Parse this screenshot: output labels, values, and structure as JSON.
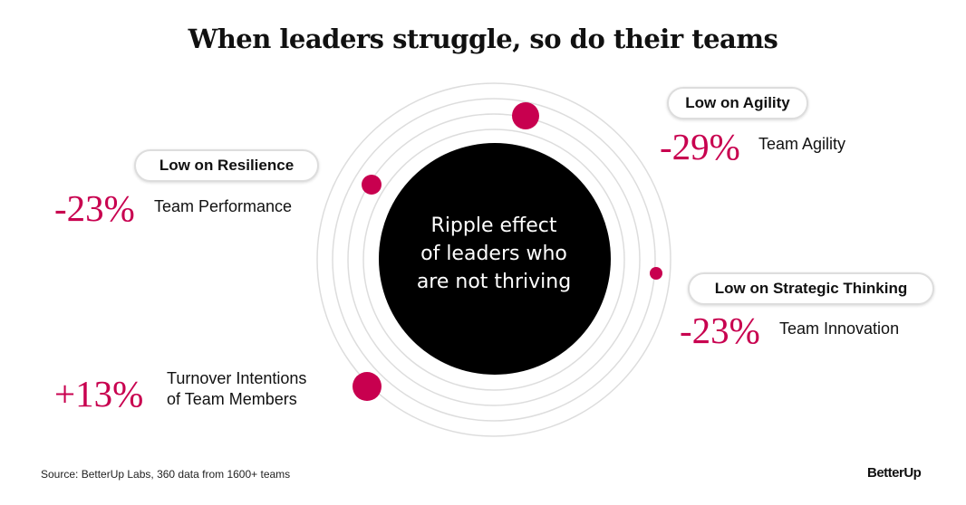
{
  "title": "When leaders struggle, so do their teams",
  "center_text": [
    "Ripple effect",
    "of leaders who",
    "are not thriving"
  ],
  "accent_color": "#c8004f",
  "callouts": [
    {
      "pill": "Low on Resilience",
      "value": "-23%",
      "label": "Team Performance"
    },
    {
      "pill": "Low on Agility",
      "value": "-29%",
      "label": "Team Agility"
    },
    {
      "pill": "Low on Strategic Thinking",
      "value": "-23%",
      "label": "Team Innovation"
    },
    {
      "value": "+13%",
      "label_lines": [
        "Turnover Intentions",
        "of Team Members"
      ]
    }
  ],
  "source": "Source: BetterUp Labs, 360 data from 1600+ teams",
  "logo": "BetterUp"
}
